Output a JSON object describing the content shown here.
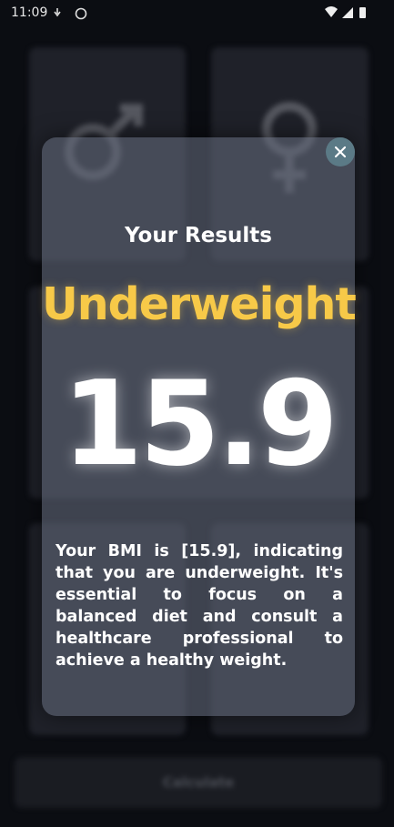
{
  "status_bar": {
    "time": "11:09"
  },
  "background": {
    "button": "Calculate"
  },
  "modal": {
    "title": "Your Results",
    "category": "Underweight",
    "bmi": "15.9",
    "message": "Your BMI is [15.9], indicating that you are underweight. It's essential to focus on a balanced diet and consult a healthcare professional to achieve a healthy weight."
  }
}
